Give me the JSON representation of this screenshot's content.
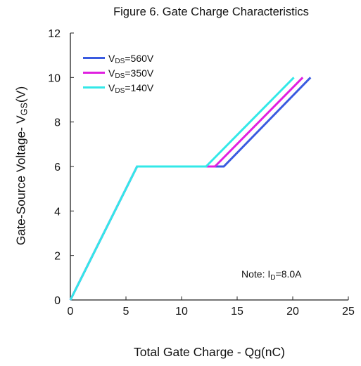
{
  "chart_data": {
    "type": "line",
    "title": "Figure 6. Gate Charge Characteristics",
    "xlabel": "Total Gate Charge - Qg(nC)",
    "ylabel_main": "Gate-Source Voltage- V",
    "ylabel_sub": "GS",
    "ylabel_unit": "(V)",
    "xlim": [
      0,
      25
    ],
    "ylim": [
      0,
      12
    ],
    "xticks": [
      "0",
      "5",
      "10",
      "15",
      "20",
      "25"
    ],
    "yticks": [
      "0",
      "2",
      "4",
      "6",
      "8",
      "10",
      "12"
    ],
    "grid": false,
    "legend_position": "top-left",
    "series": [
      {
        "name_main": "V",
        "name_sub": "DS",
        "name_rest": "=560V",
        "color": "#3a5be0",
        "x": [
          0,
          6,
          13.8,
          21.6
        ],
        "y": [
          0,
          6,
          6,
          10
        ]
      },
      {
        "name_main": "V",
        "name_sub": "DS",
        "name_rest": "=350V",
        "color": "#e020e0",
        "x": [
          0,
          6,
          13.0,
          20.9
        ],
        "y": [
          0,
          6,
          6,
          10
        ]
      },
      {
        "name_main": "V",
        "name_sub": "DS",
        "name_rest": "=140V",
        "color": "#33e8e8",
        "x": [
          0,
          6,
          12.2,
          20.1
        ],
        "y": [
          0,
          6,
          6,
          10
        ]
      }
    ],
    "annotation": {
      "main": "Note: I",
      "sub": "D",
      "rest": "=8.0A"
    }
  }
}
